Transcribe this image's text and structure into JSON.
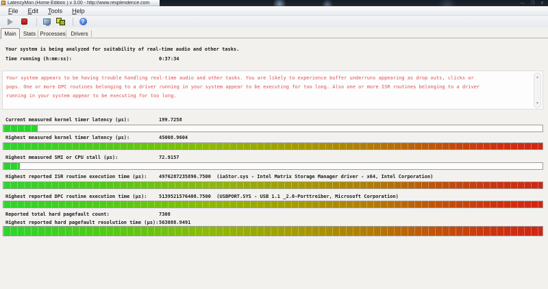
{
  "window": {
    "title": "LatencyMon  (Home Edition )  v 3.00 - http://www.resplendence.com",
    "controls": {
      "minimize": "—",
      "maximize": "❐",
      "close": "✕"
    }
  },
  "menu": {
    "items": [
      "File",
      "Edit",
      "Tools",
      "Help"
    ]
  },
  "toolbar": {
    "help_glyph": "?",
    "icons": [
      "play-icon",
      "stop-icon",
      "monitor-icon",
      "processes-icon",
      "help-icon"
    ]
  },
  "tabs": [
    {
      "label": "Main",
      "active": true
    },
    {
      "label": "Stats",
      "active": false
    },
    {
      "label": "Processes",
      "active": false
    },
    {
      "label": "Drivers",
      "active": false
    }
  ],
  "status": {
    "analyzing_line": "Your system is being analyzed for suitability of real-time audio and other tasks.",
    "time_running_label": "Time running (h:mm:ss):",
    "time_running_value": "0:37:34"
  },
  "warning": {
    "color": "#e14f4f",
    "lines": [
      "Your system appears to be having trouble handling real-time audio and other tasks. You are likely to experience buffer underruns appearing as drop outs, clicks or",
      "pops. One or more DPC routines belonging to a driver running in your system appear to be executing for too long. Also one or more ISR routines belonging to a driver",
      "running in your system appear to be executing for too long."
    ]
  },
  "metrics": [
    {
      "label": "Current measured kernel timer latency (µs):",
      "value": "199.7258",
      "bar": {
        "style": "green",
        "fill_percent": 6.3
      }
    },
    {
      "label": "Highest measured kernel timer latency (µs):",
      "value": "45008.9604",
      "bar": {
        "style": "gradient",
        "fill_percent": 100
      }
    },
    {
      "label": "Highest measured SMI or CPU stall (µs):",
      "value": "72.9157",
      "bar": {
        "style": "green",
        "fill_percent": 3
      }
    },
    {
      "label": "Highest reported ISR routine execution time (µs):",
      "value": "4976287235896.7500",
      "detail": "(iaStor.sys - Intel Matrix Storage Manager driver - x64, Intel Corporation)",
      "bar": {
        "style": "gradient",
        "fill_percent": 100
      }
    },
    {
      "label": "Highest reported DPC routine execution time (µs):",
      "value": "5139521576408.7500",
      "detail": "(USBPORT.SYS - USB 1.1 _2.0-Porttreiber, Microsoft Corporation)",
      "bar": {
        "style": "gradient",
        "fill_percent": 100
      }
    },
    {
      "label": "Reported total hard pagefault count:",
      "value": "7308",
      "bar": null
    },
    {
      "label": "Highest reported hard pagefault resolution time (µs):",
      "value": "563088.9491",
      "bar": {
        "style": "gradient",
        "fill_percent": 100
      }
    }
  ],
  "colors": {
    "bar_green": "#2bd32b",
    "bar_red_end": "#d02613",
    "warning_red": "#e14f4f"
  }
}
